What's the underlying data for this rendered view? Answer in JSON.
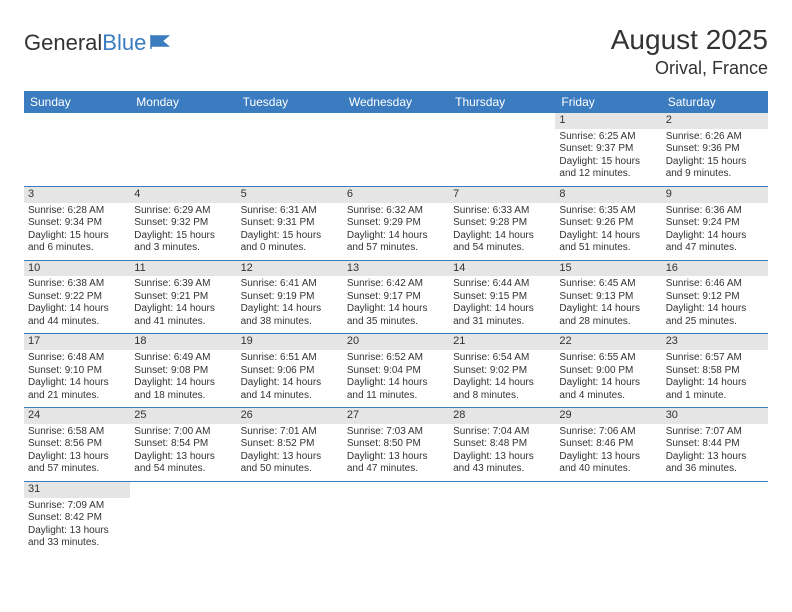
{
  "logo": {
    "text1": "General",
    "text2": "Blue"
  },
  "title": "August 2025",
  "location": "Orival, France",
  "colors": {
    "header_bg": "#3b7bbf",
    "header_text": "#ffffff",
    "body_text": "#333333",
    "daynum_bg": "#e5e5e5",
    "border": "#3b7bbf",
    "page_bg": "#ffffff"
  },
  "fonts": {
    "title_size": 28,
    "location_size": 18,
    "header_size": 12,
    "cell_size": 10
  },
  "dayHeaders": [
    "Sunday",
    "Monday",
    "Tuesday",
    "Wednesday",
    "Thursday",
    "Friday",
    "Saturday"
  ],
  "weeks": [
    [
      null,
      null,
      null,
      null,
      null,
      {
        "n": "1",
        "sr": "Sunrise: 6:25 AM",
        "ss": "Sunset: 9:37 PM",
        "d1": "Daylight: 15 hours",
        "d2": "and 12 minutes."
      },
      {
        "n": "2",
        "sr": "Sunrise: 6:26 AM",
        "ss": "Sunset: 9:36 PM",
        "d1": "Daylight: 15 hours",
        "d2": "and 9 minutes."
      }
    ],
    [
      {
        "n": "3",
        "sr": "Sunrise: 6:28 AM",
        "ss": "Sunset: 9:34 PM",
        "d1": "Daylight: 15 hours",
        "d2": "and 6 minutes."
      },
      {
        "n": "4",
        "sr": "Sunrise: 6:29 AM",
        "ss": "Sunset: 9:32 PM",
        "d1": "Daylight: 15 hours",
        "d2": "and 3 minutes."
      },
      {
        "n": "5",
        "sr": "Sunrise: 6:31 AM",
        "ss": "Sunset: 9:31 PM",
        "d1": "Daylight: 15 hours",
        "d2": "and 0 minutes."
      },
      {
        "n": "6",
        "sr": "Sunrise: 6:32 AM",
        "ss": "Sunset: 9:29 PM",
        "d1": "Daylight: 14 hours",
        "d2": "and 57 minutes."
      },
      {
        "n": "7",
        "sr": "Sunrise: 6:33 AM",
        "ss": "Sunset: 9:28 PM",
        "d1": "Daylight: 14 hours",
        "d2": "and 54 minutes."
      },
      {
        "n": "8",
        "sr": "Sunrise: 6:35 AM",
        "ss": "Sunset: 9:26 PM",
        "d1": "Daylight: 14 hours",
        "d2": "and 51 minutes."
      },
      {
        "n": "9",
        "sr": "Sunrise: 6:36 AM",
        "ss": "Sunset: 9:24 PM",
        "d1": "Daylight: 14 hours",
        "d2": "and 47 minutes."
      }
    ],
    [
      {
        "n": "10",
        "sr": "Sunrise: 6:38 AM",
        "ss": "Sunset: 9:22 PM",
        "d1": "Daylight: 14 hours",
        "d2": "and 44 minutes."
      },
      {
        "n": "11",
        "sr": "Sunrise: 6:39 AM",
        "ss": "Sunset: 9:21 PM",
        "d1": "Daylight: 14 hours",
        "d2": "and 41 minutes."
      },
      {
        "n": "12",
        "sr": "Sunrise: 6:41 AM",
        "ss": "Sunset: 9:19 PM",
        "d1": "Daylight: 14 hours",
        "d2": "and 38 minutes."
      },
      {
        "n": "13",
        "sr": "Sunrise: 6:42 AM",
        "ss": "Sunset: 9:17 PM",
        "d1": "Daylight: 14 hours",
        "d2": "and 35 minutes."
      },
      {
        "n": "14",
        "sr": "Sunrise: 6:44 AM",
        "ss": "Sunset: 9:15 PM",
        "d1": "Daylight: 14 hours",
        "d2": "and 31 minutes."
      },
      {
        "n": "15",
        "sr": "Sunrise: 6:45 AM",
        "ss": "Sunset: 9:13 PM",
        "d1": "Daylight: 14 hours",
        "d2": "and 28 minutes."
      },
      {
        "n": "16",
        "sr": "Sunrise: 6:46 AM",
        "ss": "Sunset: 9:12 PM",
        "d1": "Daylight: 14 hours",
        "d2": "and 25 minutes."
      }
    ],
    [
      {
        "n": "17",
        "sr": "Sunrise: 6:48 AM",
        "ss": "Sunset: 9:10 PM",
        "d1": "Daylight: 14 hours",
        "d2": "and 21 minutes."
      },
      {
        "n": "18",
        "sr": "Sunrise: 6:49 AM",
        "ss": "Sunset: 9:08 PM",
        "d1": "Daylight: 14 hours",
        "d2": "and 18 minutes."
      },
      {
        "n": "19",
        "sr": "Sunrise: 6:51 AM",
        "ss": "Sunset: 9:06 PM",
        "d1": "Daylight: 14 hours",
        "d2": "and 14 minutes."
      },
      {
        "n": "20",
        "sr": "Sunrise: 6:52 AM",
        "ss": "Sunset: 9:04 PM",
        "d1": "Daylight: 14 hours",
        "d2": "and 11 minutes."
      },
      {
        "n": "21",
        "sr": "Sunrise: 6:54 AM",
        "ss": "Sunset: 9:02 PM",
        "d1": "Daylight: 14 hours",
        "d2": "and 8 minutes."
      },
      {
        "n": "22",
        "sr": "Sunrise: 6:55 AM",
        "ss": "Sunset: 9:00 PM",
        "d1": "Daylight: 14 hours",
        "d2": "and 4 minutes."
      },
      {
        "n": "23",
        "sr": "Sunrise: 6:57 AM",
        "ss": "Sunset: 8:58 PM",
        "d1": "Daylight: 14 hours",
        "d2": "and 1 minute."
      }
    ],
    [
      {
        "n": "24",
        "sr": "Sunrise: 6:58 AM",
        "ss": "Sunset: 8:56 PM",
        "d1": "Daylight: 13 hours",
        "d2": "and 57 minutes."
      },
      {
        "n": "25",
        "sr": "Sunrise: 7:00 AM",
        "ss": "Sunset: 8:54 PM",
        "d1": "Daylight: 13 hours",
        "d2": "and 54 minutes."
      },
      {
        "n": "26",
        "sr": "Sunrise: 7:01 AM",
        "ss": "Sunset: 8:52 PM",
        "d1": "Daylight: 13 hours",
        "d2": "and 50 minutes."
      },
      {
        "n": "27",
        "sr": "Sunrise: 7:03 AM",
        "ss": "Sunset: 8:50 PM",
        "d1": "Daylight: 13 hours",
        "d2": "and 47 minutes."
      },
      {
        "n": "28",
        "sr": "Sunrise: 7:04 AM",
        "ss": "Sunset: 8:48 PM",
        "d1": "Daylight: 13 hours",
        "d2": "and 43 minutes."
      },
      {
        "n": "29",
        "sr": "Sunrise: 7:06 AM",
        "ss": "Sunset: 8:46 PM",
        "d1": "Daylight: 13 hours",
        "d2": "and 40 minutes."
      },
      {
        "n": "30",
        "sr": "Sunrise: 7:07 AM",
        "ss": "Sunset: 8:44 PM",
        "d1": "Daylight: 13 hours",
        "d2": "and 36 minutes."
      }
    ],
    [
      {
        "n": "31",
        "sr": "Sunrise: 7:09 AM",
        "ss": "Sunset: 8:42 PM",
        "d1": "Daylight: 13 hours",
        "d2": "and 33 minutes."
      },
      null,
      null,
      null,
      null,
      null,
      null
    ]
  ]
}
